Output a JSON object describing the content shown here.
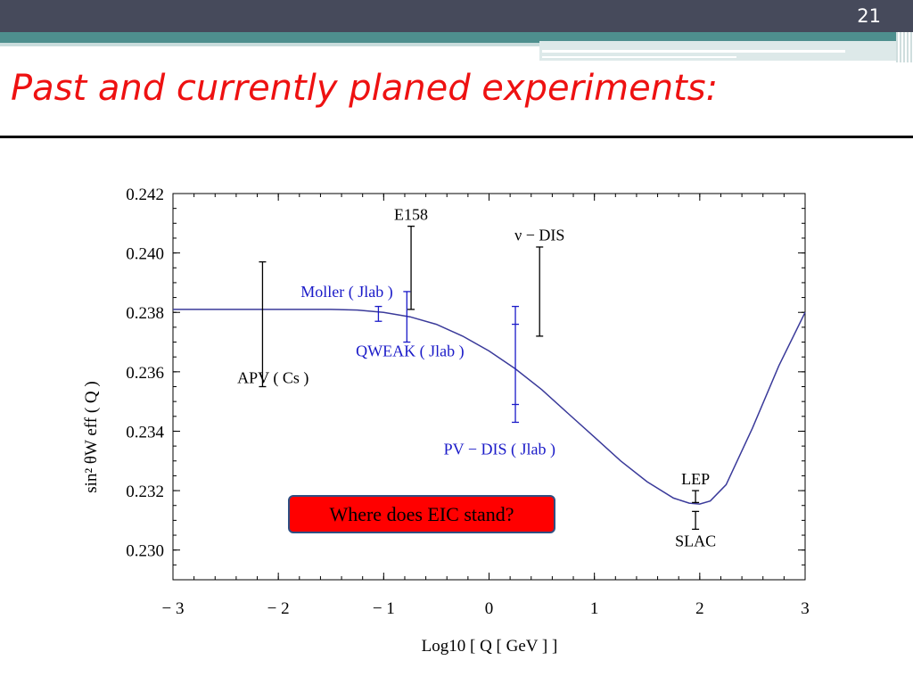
{
  "slide": {
    "number": "21",
    "title": "Past and currently planed experiments:"
  },
  "callout": {
    "text": "Where does EIC stand?",
    "bg_color": "#ff0000"
  },
  "chart_data": {
    "type": "scatter",
    "title": "",
    "xlabel": "Log10 [ Q [ GeV ] ]",
    "ylabel": "sin² θW eff ( Q )",
    "xlim": [
      -3,
      3
    ],
    "ylim": [
      0.229,
      0.242
    ],
    "x_ticks": [
      -3,
      -2,
      -1,
      0,
      1,
      2,
      3
    ],
    "x_tick_labels": [
      "− 3",
      "− 2",
      "− 1",
      "0",
      "1",
      "2",
      "3"
    ],
    "y_ticks": [
      0.23,
      0.232,
      0.234,
      0.236,
      0.238,
      0.24,
      0.242
    ],
    "y_tick_labels": [
      "0.230",
      "0.232",
      "0.234",
      "0.236",
      "0.238",
      "0.240",
      "0.242"
    ],
    "grid": false,
    "curve": {
      "color": "#3a3a9a",
      "x": [
        -3.0,
        -2.5,
        -2.0,
        -1.5,
        -1.25,
        -1.0,
        -0.75,
        -0.5,
        -0.25,
        0.0,
        0.25,
        0.5,
        0.75,
        1.0,
        1.25,
        1.5,
        1.75,
        1.9,
        2.0,
        2.1,
        2.25,
        2.5,
        2.75,
        3.0
      ],
      "y": [
        0.2381,
        0.2381,
        0.2381,
        0.2381,
        0.23808,
        0.238,
        0.23785,
        0.2376,
        0.2372,
        0.2367,
        0.2361,
        0.2354,
        0.2346,
        0.2338,
        0.233,
        0.2323,
        0.23175,
        0.23158,
        0.23155,
        0.23165,
        0.2322,
        0.2341,
        0.2362,
        0.238
      ]
    },
    "measurements": [
      {
        "name": "APV ( Cs )",
        "x": -2.15,
        "y_low": 0.2355,
        "y_high": 0.2397,
        "color": "#000000",
        "label_x": -2.05,
        "label_y": 0.2358
      },
      {
        "name": "E158",
        "x": -0.74,
        "y_low": 0.2381,
        "y_high": 0.2409,
        "color": "#000000",
        "label_x": -0.74,
        "label_y": 0.2413
      },
      {
        "name": "ν − DIS",
        "x": 0.48,
        "y_low": 0.2372,
        "y_high": 0.2402,
        "color": "#000000",
        "label_x": 0.48,
        "label_y": 0.2406
      },
      {
        "name": "Moller ( Jlab )",
        "x": -1.05,
        "y_low": 0.2377,
        "y_high": 0.2382,
        "color": "#1a1ac8",
        "label_x": -1.35,
        "label_y": 0.2387
      },
      {
        "name": "QWEAK ( Jlab )",
        "x": -0.78,
        "y_low": 0.237,
        "y_high": 0.2387,
        "color": "#1a1ac8",
        "label_x": -0.75,
        "label_y": 0.2367
      },
      {
        "name": "PV − DIS ( Jlab )",
        "x": 0.25,
        "y_low": 0.2343,
        "y_high": 0.2382,
        "inner_low": 0.2349,
        "inner_high": 0.2376,
        "color": "#1a1ac8",
        "label_x": 0.1,
        "label_y": 0.2334
      },
      {
        "name": "LEP",
        "x": 1.96,
        "y_low": 0.2316,
        "y_high": 0.232,
        "color": "#000000",
        "label_x": 1.96,
        "label_y": 0.2324
      },
      {
        "name": "SLAC",
        "x": 1.96,
        "y_low": 0.2307,
        "y_high": 0.2313,
        "color": "#000000",
        "label_x": 1.96,
        "label_y": 0.2303
      }
    ]
  }
}
